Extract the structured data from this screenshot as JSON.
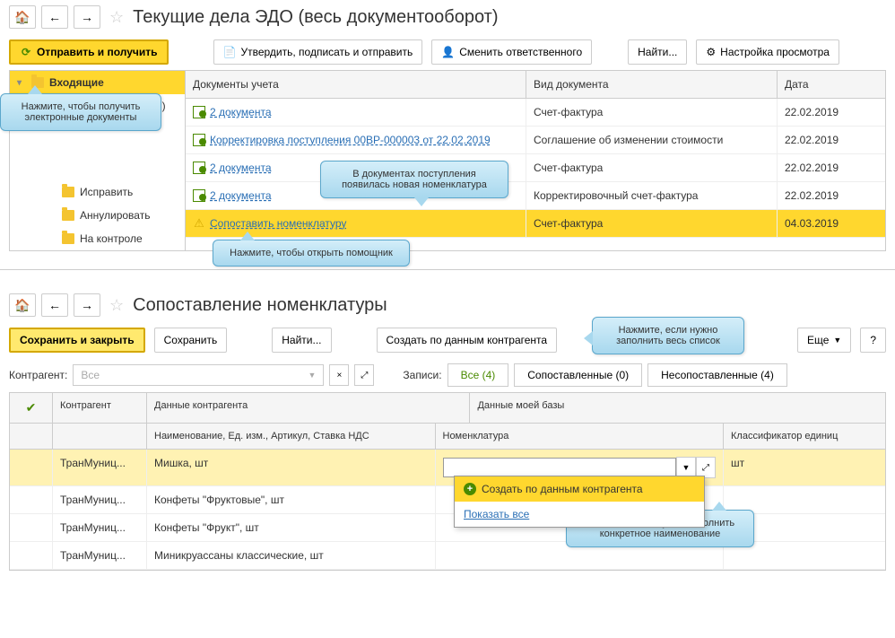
{
  "window1": {
    "title": "Текущие дела ЭДО (весь документооборот)",
    "toolbar": {
      "send_receive": "Отправить и получить",
      "approve": "Утвердить, подписать и отправить",
      "change_owner": "Сменить ответственного",
      "find": "Найти...",
      "view_settings": "Настройка просмотра"
    },
    "sidebar": {
      "items": [
        {
          "label": "Входящие",
          "selected": true,
          "level": 1
        },
        {
          "label": "Отразить в учете (5)",
          "level": 2
        },
        {
          "label": "Исправить",
          "level": 3
        },
        {
          "label": "Аннулировать",
          "level": 3
        },
        {
          "label": "На контроле",
          "level": 3
        }
      ]
    },
    "table": {
      "headers": {
        "col1": "Документы учета",
        "col2": "Вид документа",
        "col3": "Дата"
      },
      "rows": [
        {
          "doc": "2 документа",
          "type": "Счет-фактура",
          "date": "22.02.2019",
          "icon": "doc"
        },
        {
          "doc": "Корректировка поступления 00BP-000003 от 22.02.2019",
          "type": "Соглашение об изменении стоимости",
          "date": "22.02.2019",
          "icon": "doc"
        },
        {
          "doc": "2 документа",
          "type": "Счет-фактура",
          "date": "22.02.2019",
          "icon": "doc"
        },
        {
          "doc": "2 документа",
          "type": "Корректировочный счет-фактура",
          "date": "22.02.2019",
          "icon": "doc"
        },
        {
          "doc": "Сопоставить номенклатуру",
          "type": "Счет-фактура",
          "date": "04.03.2019",
          "icon": "warn",
          "highlighted": true
        }
      ]
    },
    "callouts": {
      "c1": "Нажмите, чтобы получить электронные документы",
      "c2": "В документах поступления появилась новая номенклатура",
      "c3": "Нажмите, чтобы открыть помощник"
    }
  },
  "window2": {
    "title": "Сопоставление номенклатуры",
    "toolbar": {
      "save_close": "Сохранить и закрыть",
      "save": "Сохранить",
      "find": "Найти...",
      "create_by": "Создать по данным контрагента",
      "more": "Еще",
      "help": "?"
    },
    "filter": {
      "contractor_label": "Контрагент:",
      "contractor_value": "Все",
      "records_label": "Записи:",
      "tab_all": "Все (4)",
      "tab_matched": "Сопоставленные (0)",
      "tab_unmatched": "Несопоставленные (4)"
    },
    "table": {
      "h1": {
        "check": "✓",
        "ka": "Контрагент",
        "dk": "Данные контрагента",
        "db": "Данные моей базы"
      },
      "h2": {
        "dk": "Наименование, Ед. изм., Артикул, Ставка НДС",
        "nom": "Номенклатура",
        "cls": "Классификатор единиц"
      },
      "rows": [
        {
          "ka": "ТранМуниц...",
          "dk": "Мишка, шт",
          "nom": "",
          "cls": "шт",
          "sel": true
        },
        {
          "ka": "ТранМуниц...",
          "dk": "Конфеты \"Фруктовые\", шт"
        },
        {
          "ka": "ТранМуниц...",
          "dk": "Конфеты \"Фрукт\", шт"
        },
        {
          "ka": "ТранМуниц...",
          "dk": "Миникруассаны классические, шт"
        }
      ]
    },
    "dropdown": {
      "create": "Создать по данным контрагента",
      "show_all": "Показать все"
    },
    "callouts": {
      "c1": "Нажмите, если нужно заполнить весь список",
      "c2": "Нажмите, если нужно заполнить конкретное наименование"
    }
  }
}
